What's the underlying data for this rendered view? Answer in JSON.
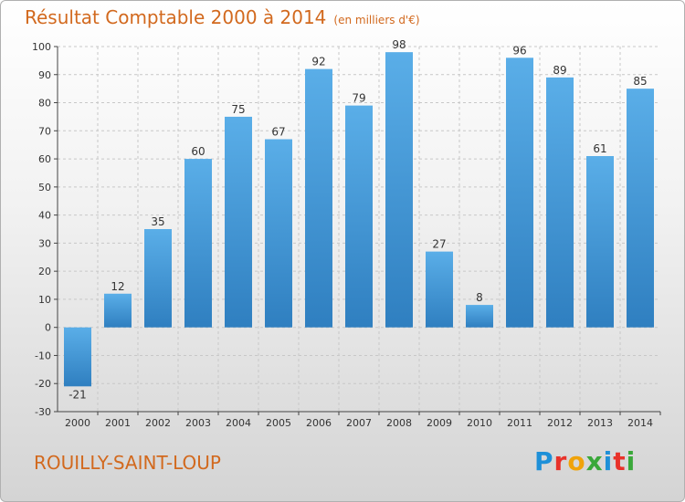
{
  "title": "Résultat Comptable 2000 à 2014",
  "unit_note": "(en milliers d'€)",
  "location": "ROUILLY-SAINT-LOUP",
  "logo": {
    "text": "Proxiti",
    "letter_colors": [
      "#1e90d8",
      "#e8322a",
      "#f0a30a",
      "#3aa83a",
      "#1e90d8",
      "#e8322a",
      "#3aa83a"
    ]
  },
  "colors": {
    "bar_light": "#5aaee8",
    "bar_dark": "#2f7fc0",
    "title": "#d2691e",
    "grid": "#c8c8c8"
  },
  "chart_data": {
    "type": "bar",
    "title": "Résultat Comptable 2000 à 2014",
    "categories": [
      "2000",
      "2001",
      "2002",
      "2003",
      "2004",
      "2005",
      "2006",
      "2007",
      "2008",
      "2009",
      "2010",
      "2011",
      "2012",
      "2013",
      "2014"
    ],
    "values": [
      -21,
      12,
      35,
      60,
      75,
      67,
      92,
      79,
      98,
      27,
      8,
      96,
      89,
      61,
      85
    ],
    "data_labels": [
      "-21",
      "12",
      "35",
      "60",
      "75",
      "67",
      "92",
      "79",
      "98",
      "27",
      "8",
      "96",
      "89",
      "61",
      "85"
    ],
    "yticks": [
      "-30",
      "-20",
      "-10",
      "0",
      "10",
      "20",
      "30",
      "40",
      "50",
      "60",
      "70",
      "80",
      "90",
      "100"
    ],
    "ylim": [
      -30,
      100
    ],
    "grid": true,
    "xlabel": "",
    "ylabel": ""
  }
}
